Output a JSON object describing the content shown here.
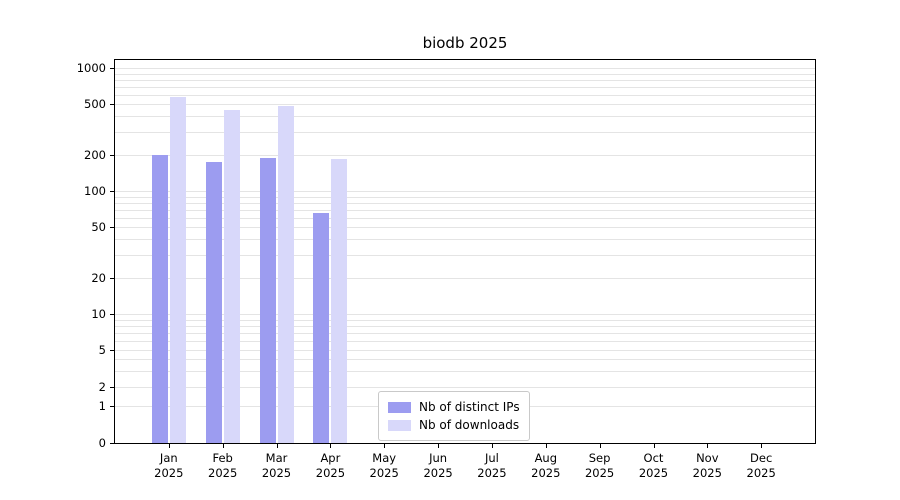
{
  "title": "biodb 2025",
  "chart_data": {
    "type": "bar",
    "title": "biodb 2025",
    "yscale": "symlog",
    "categories": [
      "Jan 2025",
      "Feb 2025",
      "Mar 2025",
      "Apr 2025",
      "May 2025",
      "Jun 2025",
      "Jul 2025",
      "Aug 2025",
      "Sep 2025",
      "Oct 2025",
      "Nov 2025",
      "Dec 2025"
    ],
    "series": [
      {
        "name": "Nb of distinct IPs",
        "color": "#9c9cf0",
        "values": [
          200,
          175,
          190,
          65,
          0,
          0,
          0,
          0,
          0,
          0,
          0,
          0
        ]
      },
      {
        "name": "Nb of downloads",
        "color": "#d8d8fa",
        "values": [
          570,
          450,
          485,
          185,
          0,
          0,
          0,
          0,
          0,
          0,
          0,
          0
        ]
      }
    ],
    "y_ticks": [
      0,
      1,
      2,
      5,
      10,
      20,
      50,
      100,
      200,
      500,
      1000
    ],
    "ylim": [
      0,
      1000
    ],
    "grid": "horizontal",
    "grid_color": "#e4e4e4",
    "axis_color": "#000000",
    "legend_position": "bottom-center-inside"
  }
}
